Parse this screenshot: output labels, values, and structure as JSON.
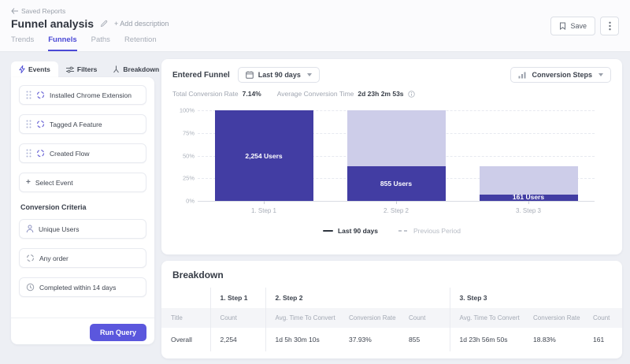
{
  "header": {
    "back_label": "Saved Reports",
    "title": "Funnel analysis",
    "add_description_label": "+ Add description",
    "tabs": [
      {
        "label": "Trends",
        "active": false
      },
      {
        "label": "Funnels",
        "active": true
      },
      {
        "label": "Paths",
        "active": false
      },
      {
        "label": "Retention",
        "active": false
      }
    ],
    "save_label": "Save"
  },
  "sidebar": {
    "tabs": [
      {
        "label": "Events",
        "active": true
      },
      {
        "label": "Filters",
        "active": false
      },
      {
        "label": "Breakdown",
        "active": false
      }
    ],
    "events": [
      "Installed Chrome Extension",
      "Tagged A Feature",
      "Created Flow"
    ],
    "select_event_label": "Select Event",
    "conversion_criteria": {
      "heading": "Conversion Criteria",
      "items": [
        {
          "label": "Unique Users"
        },
        {
          "label": "Any order"
        },
        {
          "label": "Completed within 14 days"
        }
      ]
    },
    "run_query_label": "Run Query"
  },
  "funnel": {
    "title": "Entered Funnel",
    "date_range": "Last 90 days",
    "view_mode": "Conversion Steps",
    "stats": {
      "total_rate_label": "Total Conversion Rate",
      "total_rate": "7.14%",
      "avg_time_label": "Average Conversion Time",
      "avg_time": "2d 23h 2m 53s"
    },
    "legend": [
      {
        "label": "Last 90 days",
        "style": "solid"
      },
      {
        "label": "Previous Period",
        "style": "dashed"
      }
    ]
  },
  "chart_data": {
    "type": "bar",
    "title": "Entered Funnel — Conversion Steps",
    "categories": [
      "1. Step 1",
      "2. Step 2",
      "3. Step 3"
    ],
    "series": [
      {
        "name": "Last 90 days (converted)",
        "values": [
          100,
          37.93,
          7.14
        ],
        "user_counts": [
          2254,
          855,
          161
        ],
        "bar_labels": [
          "2,254 Users",
          "855 Users",
          "161 Users"
        ],
        "color": "#423da3"
      },
      {
        "name": "Previous step total (drop-off overlay)",
        "values": [
          100,
          100,
          37.93
        ],
        "color": "#cdcde9"
      }
    ],
    "ylim": [
      0,
      100
    ],
    "yticks": [
      "100%",
      "75%",
      "50%",
      "25%",
      "0%"
    ],
    "grid": "dashed horizontal",
    "legend_entries": [
      "Last 90 days",
      "Previous Period"
    ],
    "legend_position": "bottom"
  },
  "breakdown": {
    "title": "Breakdown",
    "groups": [
      "1. Step 1",
      "2. Step 2",
      "3. Step 3"
    ],
    "columns": [
      "Title",
      "Count",
      "Avg. Time To Convert",
      "Conversion Rate",
      "Count",
      "Avg. Time To Convert",
      "Conversion Rate",
      "Count"
    ],
    "rows": [
      [
        "Overall",
        "2,254",
        "1d 5h 30m 10s",
        "37.93%",
        "855",
        "1d 23h 56m 50s",
        "18.83%",
        "161"
      ]
    ]
  },
  "colors": {
    "accent": "#4b4ad6",
    "bar_dark": "#423da3",
    "bar_light": "#cdcde9",
    "run_button": "#5b57dd"
  }
}
